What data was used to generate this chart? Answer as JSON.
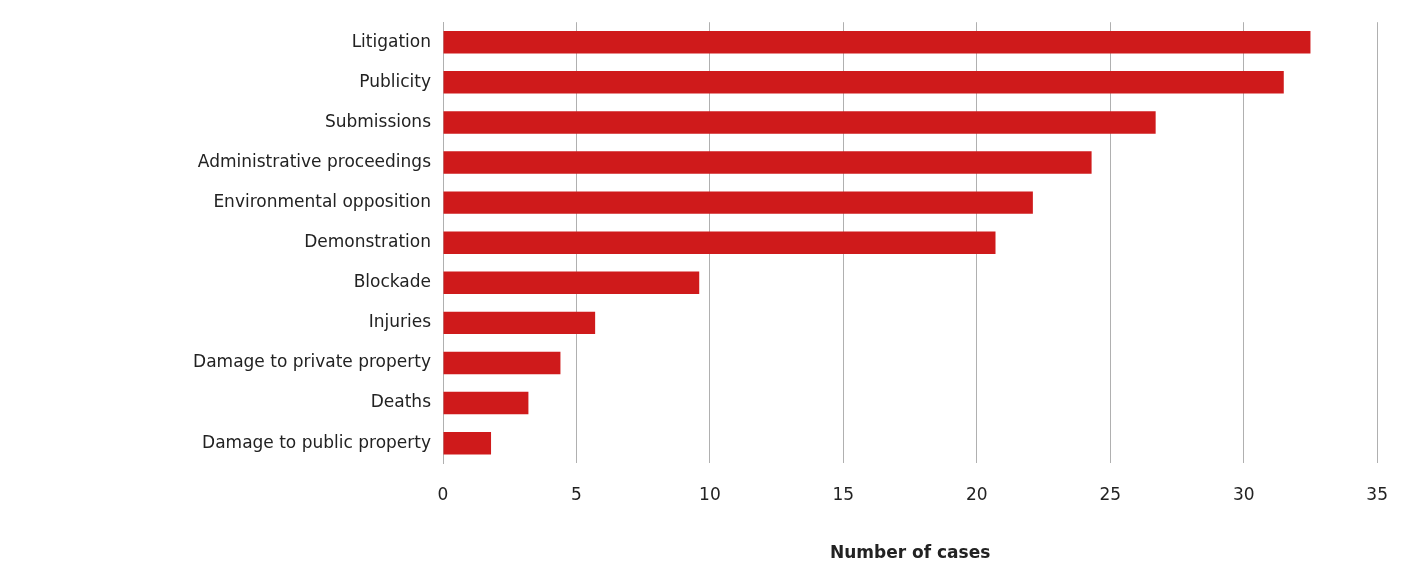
{
  "chart_data": {
    "type": "bar",
    "orientation": "horizontal",
    "xlabel": "Number of cases",
    "categories": [
      "Litigation",
      "Publicity",
      "Submissions",
      "Administrative proceedings",
      "Environmental opposition",
      "Demonstration",
      "Blockade",
      "Injuries",
      "Damage to private property",
      "Deaths",
      "Damage to public property"
    ],
    "values": [
      32.5,
      31.5,
      26.7,
      24.3,
      22.1,
      20.7,
      9.6,
      5.7,
      4.4,
      3.2,
      1.8
    ],
    "color": "#cf1a1b",
    "xlim": [
      0,
      35
    ],
    "xticks": [
      0,
      5,
      10,
      15,
      20,
      25,
      30,
      35
    ],
    "grid": "x",
    "legend": false
  }
}
